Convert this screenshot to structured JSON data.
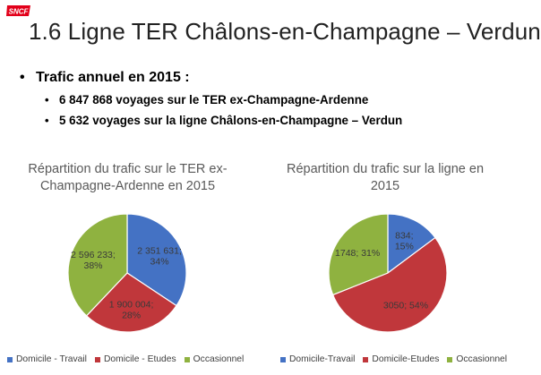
{
  "brand": {
    "logo_text": "SNCF"
  },
  "slide": {
    "title": "1.6 Ligne TER Châlons-en-Champagne – Verdun",
    "bullet_main": "Trafic annuel en 2015 :",
    "sub_bullets": [
      "6 847 868 voyages sur le TER ex-Champagne-Ardenne",
      "5 632 voyages sur la ligne Châlons-en-Champagne – Verdun"
    ]
  },
  "colors": {
    "domicile_travail": "#4472C4",
    "domicile_etudes": "#C0373B",
    "occasionnel": "#8FB240"
  },
  "chart_data": [
    {
      "type": "pie",
      "title": "Répartition du trafic sur le TER ex-Champagne-Ardenne en 2015",
      "categories": [
        "Domicile - Travail",
        "Domicile - Etudes",
        "Occasionnel"
      ],
      "values": [
        2351631,
        1900004,
        2596233
      ],
      "data_labels": [
        "2 351 631;\n34%",
        "1 900 004;\n28%",
        "2 596 233;\n38%"
      ],
      "legend": "bottom"
    },
    {
      "type": "pie",
      "title": "Répartition du trafic sur la ligne en 2015",
      "categories": [
        "Domicile-Travail",
        "Domicile-Etudes",
        "Occasionnel"
      ],
      "values": [
        834,
        3050,
        1748
      ],
      "data_labels": [
        "834;\n15%",
        "3050; 54%",
        "1748; 31%"
      ],
      "legend": "bottom"
    }
  ]
}
